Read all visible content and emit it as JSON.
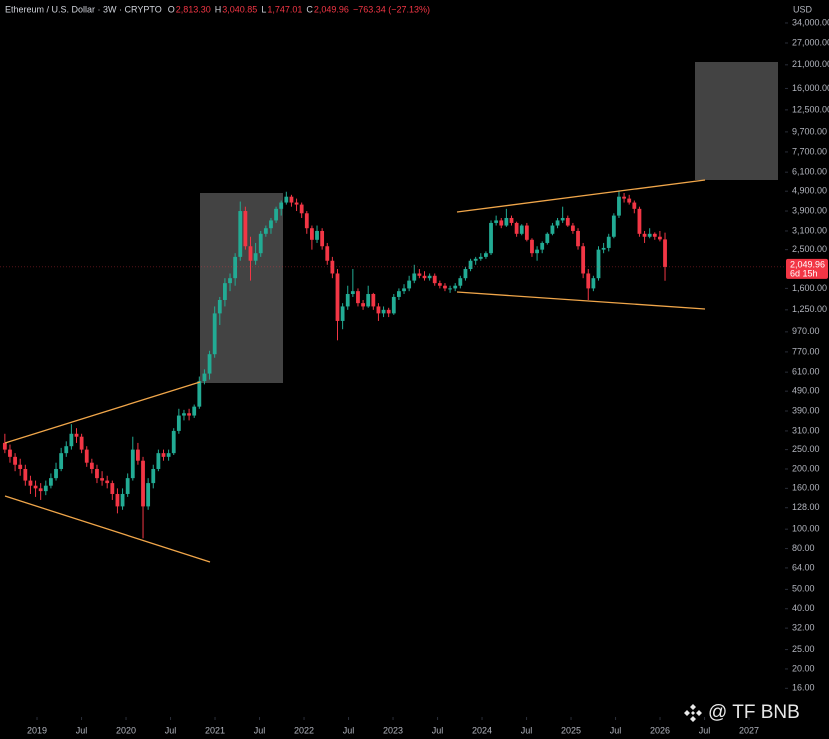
{
  "header": {
    "symbol": "Ethereum / U.S. Dollar · 3W · CRYPTO",
    "fields": [
      {
        "key": "O",
        "value": "2,813.30"
      },
      {
        "key": "H",
        "value": "3,040.85"
      },
      {
        "key": "L",
        "value": "1,747.01"
      },
      {
        "key": "C",
        "value": "2,049.96"
      }
    ],
    "change": "−763.34 (−27.13%)"
  },
  "currency": "USD",
  "watermark": "@ TF BNB",
  "last_label": {
    "price": "2,049.96",
    "countdown": "6d 15h"
  },
  "chart_data": {
    "type": "candlestick",
    "log_scale": true,
    "up_color": "#22ab94",
    "down_color": "#f23645",
    "x": [
      2018.6385,
      2018.696,
      2018.7535,
      2018.811,
      2018.8685,
      2018.926,
      2018.9835,
      2019.041,
      2019.0985,
      2019.156,
      2019.2135,
      2019.271,
      2019.3285,
      2019.386,
      2019.4435,
      2019.501,
      2019.5585,
      2019.616,
      2019.6735,
      2019.731,
      2019.7885,
      2019.846,
      2019.9035,
      2019.961,
      2020.0185,
      2020.076,
      2020.1335,
      2020.191,
      2020.2485,
      2020.306,
      2020.3635,
      2020.421,
      2020.4785,
      2020.536,
      2020.5935,
      2020.651,
      2020.7085,
      2020.766,
      2020.8235,
      2020.881,
      2020.9385,
      2020.996,
      2021.0535,
      2021.111,
      2021.1685,
      2021.226,
      2021.2835,
      2021.341,
      2021.3985,
      2021.456,
      2021.5135,
      2021.571,
      2021.6285,
      2021.686,
      2021.7435,
      2021.801,
      2021.8585,
      2021.916,
      2021.9735,
      2022.031,
      2022.0885,
      2022.146,
      2022.2035,
      2022.261,
      2022.3185,
      2022.376,
      2022.4335,
      2022.491,
      2022.5485,
      2022.606,
      2022.6635,
      2022.721,
      2022.7785,
      2022.836,
      2022.8935,
      2022.951,
      2023.0085,
      2023.066,
      2023.1235,
      2023.181,
      2023.2385,
      2023.296,
      2023.3535,
      2023.411,
      2023.4685,
      2023.526,
      2023.5835,
      2023.641,
      2023.6985,
      2023.756,
      2023.8135,
      2023.871,
      2023.9285,
      2023.986,
      2024.0435,
      2024.101,
      2024.1585,
      2024.216,
      2024.2735,
      2024.331,
      2024.3885,
      2024.446,
      2024.5035,
      2024.561,
      2024.6185,
      2024.676,
      2024.7335,
      2024.791,
      2024.8485,
      2024.906,
      2024.9635,
      2025.021,
      2025.0785,
      2025.136,
      2025.1935,
      2025.251,
      2025.3085,
      2025.366,
      2025.4235,
      2025.481,
      2025.5385,
      2025.596,
      2025.6535,
      2025.711,
      2025.7685,
      2025.826,
      2025.8835,
      2025.941,
      2025.9985,
      2026.056
    ],
    "open": [
      270,
      250,
      230,
      210,
      200,
      175,
      165,
      160,
      155,
      165,
      180,
      200,
      240,
      260,
      300,
      290,
      250,
      215,
      200,
      180,
      175,
      170,
      150,
      130,
      150,
      180,
      250,
      220,
      130,
      170,
      200,
      240,
      230,
      240,
      310,
      370,
      380,
      370,
      410,
      550,
      600,
      750,
      1200,
      1400,
      1700,
      1800,
      2300,
      3900,
      2600,
      2200,
      2400,
      3000,
      3200,
      3500,
      4000,
      4300,
      4600,
      4300,
      4200,
      3800,
      3200,
      2800,
      3100,
      2600,
      2200,
      1900,
      1100,
      1300,
      1500,
      1550,
      1350,
      1300,
      1500,
      1300,
      1200,
      1250,
      1200,
      1450,
      1550,
      1600,
      1750,
      1900,
      1850,
      1800,
      1850,
      1700,
      1650,
      1600,
      1600,
      1650,
      1800,
      2000,
      2200,
      2250,
      2300,
      2400,
      3400,
      3500,
      3300,
      3600,
      3400,
      3000,
      3300,
      2800,
      2400,
      2500,
      2700,
      3000,
      3300,
      3500,
      3600,
      3300,
      3100,
      2600,
      1900,
      1600,
      1800,
      2500,
      2550,
      2900,
      3700,
      4600,
      4500,
      4300,
      4000,
      3000,
      2900,
      3000,
      2900,
      2813.3
    ],
    "high": [
      300,
      265,
      240,
      225,
      210,
      185,
      175,
      170,
      175,
      190,
      215,
      255,
      275,
      335,
      320,
      300,
      260,
      225,
      210,
      195,
      185,
      175,
      160,
      160,
      190,
      290,
      270,
      230,
      180,
      210,
      250,
      250,
      250,
      320,
      400,
      395,
      400,
      420,
      580,
      630,
      780,
      1300,
      1450,
      1800,
      1900,
      2400,
      4350,
      4100,
      2900,
      2700,
      3100,
      3300,
      3600,
      4100,
      4400,
      4870,
      4700,
      4500,
      4300,
      3900,
      3300,
      3300,
      3200,
      2700,
      2300,
      2000,
      1350,
      1650,
      2000,
      1600,
      1400,
      1650,
      1520,
      1350,
      1300,
      1280,
      1500,
      1600,
      1680,
      1850,
      2100,
      2000,
      1950,
      1900,
      1900,
      1750,
      1700,
      1650,
      1700,
      1850,
      2050,
      2250,
      2300,
      2400,
      2450,
      3500,
      3700,
      3600,
      4000,
      3700,
      3450,
      3350,
      3400,
      2850,
      2600,
      2750,
      3050,
      3400,
      3600,
      4100,
      3700,
      3400,
      3200,
      2700,
      2000,
      1850,
      2600,
      2700,
      3000,
      3800,
      4950,
      4800,
      4700,
      4400,
      4100,
      3100,
      3200,
      3050,
      3100,
      3040.85
    ],
    "low": [
      240,
      215,
      195,
      185,
      165,
      150,
      145,
      140,
      148,
      160,
      175,
      195,
      230,
      250,
      270,
      240,
      205,
      190,
      170,
      165,
      160,
      140,
      120,
      125,
      145,
      175,
      210,
      90,
      125,
      160,
      195,
      220,
      220,
      235,
      300,
      350,
      350,
      360,
      400,
      530,
      560,
      720,
      1050,
      1300,
      1550,
      1650,
      2200,
      2500,
      1750,
      2100,
      2300,
      2900,
      3000,
      3400,
      3700,
      4200,
      4100,
      3900,
      3600,
      3000,
      2500,
      2700,
      2500,
      2100,
      1800,
      880,
      1000,
      1250,
      1450,
      1300,
      1250,
      1280,
      1250,
      1100,
      1150,
      1150,
      1180,
      1400,
      1500,
      1550,
      1700,
      1800,
      1750,
      1750,
      1650,
      1600,
      1550,
      1520,
      1550,
      1600,
      1750,
      1950,
      2100,
      2200,
      2250,
      2350,
      3300,
      3200,
      3250,
      3300,
      2900,
      2950,
      2750,
      2300,
      2200,
      2400,
      2650,
      2950,
      3200,
      3400,
      3250,
      3000,
      2500,
      1800,
      1400,
      1550,
      1750,
      2400,
      2450,
      2850,
      3600,
      4300,
      4200,
      3800,
      2900,
      2700,
      2850,
      2800,
      2750,
      1747.01
    ],
    "close": [
      250,
      230,
      210,
      200,
      175,
      165,
      160,
      155,
      165,
      180,
      200,
      240,
      260,
      300,
      290,
      250,
      215,
      200,
      180,
      175,
      170,
      150,
      130,
      150,
      180,
      250,
      220,
      130,
      170,
      200,
      240,
      230,
      240,
      310,
      370,
      380,
      370,
      410,
      550,
      600,
      750,
      1200,
      1400,
      1700,
      1800,
      2300,
      3900,
      2600,
      2200,
      2400,
      3000,
      3200,
      3500,
      4000,
      4300,
      4600,
      4300,
      4200,
      3800,
      3200,
      2800,
      3100,
      2600,
      2200,
      1900,
      1100,
      1300,
      1500,
      1550,
      1350,
      1300,
      1500,
      1300,
      1200,
      1250,
      1200,
      1450,
      1550,
      1600,
      1750,
      1900,
      1850,
      1800,
      1850,
      1700,
      1650,
      1600,
      1600,
      1650,
      1800,
      2000,
      2200,
      2250,
      2300,
      2400,
      3400,
      3500,
      3300,
      3600,
      3400,
      3000,
      3300,
      2800,
      2400,
      2500,
      2700,
      3000,
      3300,
      3500,
      3600,
      3300,
      3100,
      2600,
      1900,
      1600,
      1800,
      2500,
      2550,
      2900,
      3700,
      4600,
      4500,
      4300,
      4000,
      3000,
      2900,
      3000,
      2900,
      2813.3,
      2049.96
    ],
    "xlim": [
      2018.584,
      2027.404
    ],
    "ylim": [
      11.5,
      44300
    ],
    "xticks": [
      2019,
      {
        "value": 2019.5,
        "label": "Jul"
      },
      2020,
      {
        "value": 2020.5,
        "label": "Jul"
      },
      2021,
      {
        "value": 2021.5,
        "label": "Jul"
      },
      2022,
      {
        "value": 2022.5,
        "label": "Jul"
      },
      2023,
      {
        "value": 2023.5,
        "label": "Jul"
      },
      2024,
      {
        "value": 2024.5,
        "label": "Jul"
      },
      2025,
      {
        "value": 2025.5,
        "label": "Jul"
      },
      2026,
      {
        "value": 2026.5,
        "label": "Jul"
      },
      2027
    ],
    "yticks": [
      {
        "value": 34000,
        "label": "34,000.00"
      },
      {
        "value": 27000,
        "label": "27,000.00"
      },
      {
        "value": 21000,
        "label": "21,000.00"
      },
      {
        "value": 16000,
        "label": "16,000.00"
      },
      {
        "value": 12500,
        "label": "12,500.00"
      },
      {
        "value": 9700,
        "label": "9,700.00"
      },
      {
        "value": 7700,
        "label": "7,700.00"
      },
      {
        "value": 6100,
        "label": "6,100.00"
      },
      {
        "value": 4900,
        "label": "4,900.00"
      },
      {
        "value": 3900,
        "label": "3,900.00"
      },
      {
        "value": 3100,
        "label": "3,100.00"
      },
      {
        "value": 2500,
        "label": "2,500.00"
      },
      {
        "value": 1600,
        "label": "1,600.00"
      },
      {
        "value": 1250,
        "label": "1,250.00"
      },
      {
        "value": 970,
        "label": "970.00"
      },
      {
        "value": 770,
        "label": "770.00"
      },
      {
        "value": 610,
        "label": "610.00"
      },
      {
        "value": 490,
        "label": "490.00"
      },
      {
        "value": 390,
        "label": "390.00"
      },
      {
        "value": 310,
        "label": "310.00"
      },
      {
        "value": 250,
        "label": "250.00"
      },
      {
        "value": 200,
        "label": "200.00"
      },
      {
        "value": 160,
        "label": "160.00"
      },
      {
        "value": 128,
        "label": "128.00"
      },
      {
        "value": 100,
        "label": "100.00"
      },
      {
        "value": 80,
        "label": "80.00"
      },
      {
        "value": 64,
        "label": "64.00"
      },
      {
        "value": 50,
        "label": "50.00"
      },
      {
        "value": 40,
        "label": "40.00"
      },
      {
        "value": 32,
        "label": "32.00"
      },
      {
        "value": 25,
        "label": "25.00"
      },
      {
        "value": 20,
        "label": "20.00"
      },
      {
        "value": 16,
        "label": "16.00"
      }
    ]
  }
}
